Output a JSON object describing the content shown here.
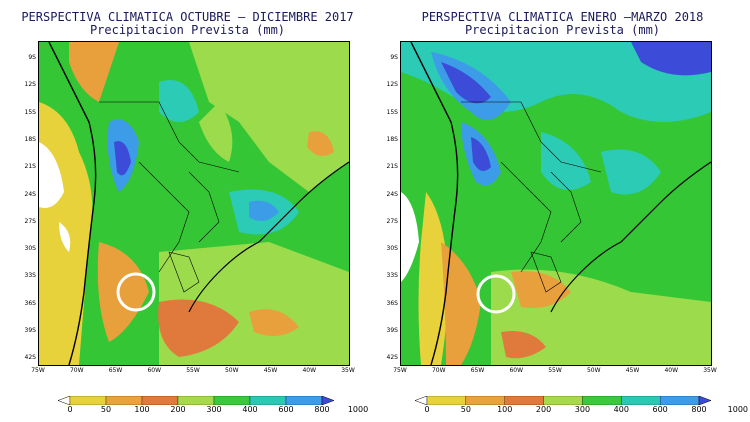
{
  "panels": [
    {
      "title_line1": "PERSPECTIVA CLIMATICA OCTUBRE – DICIEMBRE 2017",
      "title_line2": "Precipitacion Prevista (mm)"
    },
    {
      "title_line1": "PERSPECTIVA CLIMATICA ENERO –MARZO 2018",
      "title_line2": "Precipitacion Prevista (mm)"
    }
  ],
  "latitude_labels": [
    "9S",
    "12S",
    "15S",
    "18S",
    "21S",
    "24S",
    "27S",
    "30S",
    "33S",
    "36S",
    "39S",
    "42S"
  ],
  "longitude_labels": [
    "75W",
    "70W",
    "65W",
    "60W",
    "55W",
    "50W",
    "45W",
    "40W",
    "35W"
  ],
  "colorbar": {
    "labels": [
      "0",
      "50",
      "100",
      "200",
      "300",
      "400",
      "600",
      "800",
      "1000"
    ],
    "colors": [
      "#ffffff",
      "#e8d23c",
      "#e8a43c",
      "#e07a3c",
      "#a8d84c",
      "#3cc83c",
      "#2cc8b4",
      "#3c9ce8",
      "#3c4cd8"
    ]
  },
  "colors": {
    "base_green": "#34c634",
    "light_green": "#9cdc4c",
    "cyan": "#2ccbb6",
    "light_blue": "#3c9ce8",
    "dark_blue": "#3c4cd8",
    "yellow": "#e8d23c",
    "orange": "#e8a03c",
    "dark_orange": "#e07a3c",
    "circle": "#ffffff"
  }
}
